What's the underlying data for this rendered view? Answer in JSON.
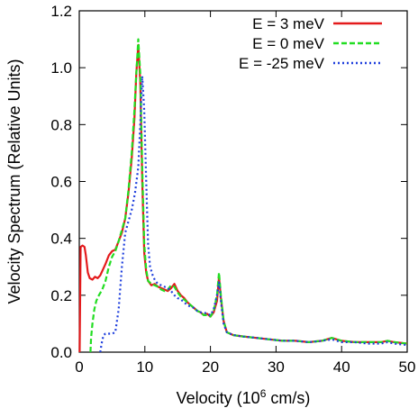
{
  "chart_data": {
    "type": "line",
    "title": "",
    "xlabel_prefix": "Velocity (10",
    "xlabel_sup": "6",
    "xlabel_suffix": " cm/s)",
    "ylabel": "Velocity Spectrum (Relative Units)",
    "xlim": [
      0,
      50
    ],
    "ylim": [
      0,
      1.2
    ],
    "xticks": [
      "0",
      "10",
      "20",
      "30",
      "40",
      "50"
    ],
    "yticks": [
      "0.0",
      "0.2",
      "0.4",
      "0.6",
      "0.8",
      "1.0",
      "1.2"
    ],
    "legend_position": "top-right",
    "grid": false,
    "series": [
      {
        "name": "E = 3 meV",
        "color": "#e41a1c",
        "dash": "solid",
        "points": [
          [
            0.05,
            0.0
          ],
          [
            0.2,
            0.37
          ],
          [
            0.5,
            0.375
          ],
          [
            0.8,
            0.37
          ],
          [
            1.0,
            0.34
          ],
          [
            1.3,
            0.28
          ],
          [
            1.6,
            0.26
          ],
          [
            2.0,
            0.255
          ],
          [
            2.4,
            0.265
          ],
          [
            2.8,
            0.26
          ],
          [
            3.2,
            0.27
          ],
          [
            3.6,
            0.29
          ],
          [
            4.0,
            0.31
          ],
          [
            4.5,
            0.34
          ],
          [
            5.0,
            0.355
          ],
          [
            5.5,
            0.36
          ],
          [
            6.0,
            0.39
          ],
          [
            6.5,
            0.42
          ],
          [
            7.0,
            0.47
          ],
          [
            7.5,
            0.56
          ],
          [
            8.0,
            0.68
          ],
          [
            8.4,
            0.82
          ],
          [
            8.7,
            0.98
          ],
          [
            9.0,
            1.08
          ],
          [
            9.3,
            0.95
          ],
          [
            9.6,
            0.6
          ],
          [
            9.9,
            0.35
          ],
          [
            10.2,
            0.28
          ],
          [
            10.5,
            0.25
          ],
          [
            11.0,
            0.235
          ],
          [
            11.5,
            0.24
          ],
          [
            12.0,
            0.23
          ],
          [
            12.5,
            0.225
          ],
          [
            13.0,
            0.22
          ],
          [
            13.5,
            0.215
          ],
          [
            14.0,
            0.225
          ],
          [
            14.5,
            0.24
          ],
          [
            15.0,
            0.215
          ],
          [
            15.5,
            0.2
          ],
          [
            16.0,
            0.19
          ],
          [
            16.5,
            0.175
          ],
          [
            17.0,
            0.165
          ],
          [
            17.5,
            0.155
          ],
          [
            18.0,
            0.145
          ],
          [
            18.5,
            0.14
          ],
          [
            19.0,
            0.13
          ],
          [
            19.5,
            0.135
          ],
          [
            20.0,
            0.125
          ],
          [
            20.5,
            0.14
          ],
          [
            21.0,
            0.18
          ],
          [
            21.3,
            0.265
          ],
          [
            21.6,
            0.19
          ],
          [
            22.0,
            0.11
          ],
          [
            22.5,
            0.07
          ],
          [
            23.5,
            0.06
          ],
          [
            25,
            0.055
          ],
          [
            27,
            0.05
          ],
          [
            29,
            0.045
          ],
          [
            31,
            0.04
          ],
          [
            33,
            0.04
          ],
          [
            35,
            0.035
          ],
          [
            37,
            0.04
          ],
          [
            38.5,
            0.05
          ],
          [
            40,
            0.04
          ],
          [
            42,
            0.035
          ],
          [
            44,
            0.035
          ],
          [
            46,
            0.035
          ],
          [
            47,
            0.04
          ],
          [
            48,
            0.035
          ],
          [
            50,
            0.03
          ]
        ]
      },
      {
        "name": "E = 0 meV",
        "color": "#22dd22",
        "dash": "6,3",
        "points": [
          [
            1.7,
            0.0
          ],
          [
            1.8,
            0.05
          ],
          [
            2.0,
            0.1
          ],
          [
            2.3,
            0.15
          ],
          [
            2.6,
            0.18
          ],
          [
            3.0,
            0.2
          ],
          [
            3.5,
            0.22
          ],
          [
            4.0,
            0.25
          ],
          [
            4.5,
            0.3
          ],
          [
            5.0,
            0.335
          ],
          [
            5.5,
            0.355
          ],
          [
            6.0,
            0.39
          ],
          [
            6.5,
            0.43
          ],
          [
            7.0,
            0.47
          ],
          [
            7.5,
            0.57
          ],
          [
            8.0,
            0.7
          ],
          [
            8.4,
            0.85
          ],
          [
            8.7,
            0.98
          ],
          [
            9.0,
            1.1
          ],
          [
            9.3,
            0.98
          ],
          [
            9.6,
            0.65
          ],
          [
            9.9,
            0.38
          ],
          [
            10.2,
            0.29
          ],
          [
            10.5,
            0.25
          ],
          [
            11.0,
            0.24
          ],
          [
            11.5,
            0.235
          ],
          [
            12.0,
            0.23
          ],
          [
            12.5,
            0.22
          ],
          [
            13.0,
            0.215
          ],
          [
            13.5,
            0.22
          ],
          [
            14.0,
            0.235
          ],
          [
            14.5,
            0.23
          ],
          [
            15.0,
            0.21
          ],
          [
            15.5,
            0.195
          ],
          [
            16.0,
            0.185
          ],
          [
            16.5,
            0.175
          ],
          [
            17.0,
            0.165
          ],
          [
            17.5,
            0.155
          ],
          [
            18.0,
            0.145
          ],
          [
            18.5,
            0.14
          ],
          [
            19.0,
            0.13
          ],
          [
            19.5,
            0.13
          ],
          [
            20.0,
            0.125
          ],
          [
            20.5,
            0.145
          ],
          [
            21.0,
            0.2
          ],
          [
            21.3,
            0.28
          ],
          [
            21.6,
            0.2
          ],
          [
            22.0,
            0.11
          ],
          [
            22.5,
            0.07
          ],
          [
            23.5,
            0.06
          ],
          [
            25,
            0.055
          ],
          [
            27,
            0.05
          ],
          [
            29,
            0.045
          ],
          [
            31,
            0.04
          ],
          [
            33,
            0.04
          ],
          [
            35,
            0.035
          ],
          [
            37,
            0.04
          ],
          [
            38.5,
            0.05
          ],
          [
            40,
            0.04
          ],
          [
            42,
            0.035
          ],
          [
            44,
            0.035
          ],
          [
            46,
            0.035
          ],
          [
            47,
            0.04
          ],
          [
            48,
            0.035
          ],
          [
            50,
            0.03
          ]
        ]
      },
      {
        "name": "E = -25 meV",
        "color": "#1f3fdd",
        "dash": "2,3",
        "points": [
          [
            3.2,
            0.0
          ],
          [
            3.4,
            0.03
          ],
          [
            3.7,
            0.06
          ],
          [
            4.0,
            0.065
          ],
          [
            4.5,
            0.065
          ],
          [
            5.0,
            0.065
          ],
          [
            5.5,
            0.07
          ],
          [
            6.0,
            0.15
          ],
          [
            6.5,
            0.3
          ],
          [
            7.0,
            0.42
          ],
          [
            7.5,
            0.46
          ],
          [
            8.0,
            0.5
          ],
          [
            8.5,
            0.56
          ],
          [
            9.0,
            0.65
          ],
          [
            9.3,
            0.8
          ],
          [
            9.6,
            0.97
          ],
          [
            9.9,
            0.85
          ],
          [
            10.2,
            0.6
          ],
          [
            10.5,
            0.38
          ],
          [
            10.8,
            0.3
          ],
          [
            11.2,
            0.27
          ],
          [
            11.6,
            0.25
          ],
          [
            12.0,
            0.24
          ],
          [
            12.5,
            0.235
          ],
          [
            13.0,
            0.23
          ],
          [
            13.5,
            0.225
          ],
          [
            14.0,
            0.215
          ],
          [
            14.5,
            0.2
          ],
          [
            15.0,
            0.19
          ],
          [
            15.5,
            0.185
          ],
          [
            16.0,
            0.175
          ],
          [
            16.5,
            0.165
          ],
          [
            17.0,
            0.16
          ],
          [
            17.5,
            0.155
          ],
          [
            18.0,
            0.145
          ],
          [
            18.5,
            0.14
          ],
          [
            19.0,
            0.14
          ],
          [
            19.5,
            0.135
          ],
          [
            20.0,
            0.13
          ],
          [
            20.5,
            0.15
          ],
          [
            21.0,
            0.2
          ],
          [
            21.3,
            0.245
          ],
          [
            21.6,
            0.18
          ],
          [
            22.0,
            0.1
          ],
          [
            22.5,
            0.07
          ],
          [
            23.5,
            0.06
          ],
          [
            25,
            0.055
          ],
          [
            27,
            0.05
          ],
          [
            29,
            0.045
          ],
          [
            31,
            0.04
          ],
          [
            33,
            0.04
          ],
          [
            35,
            0.035
          ],
          [
            37,
            0.04
          ],
          [
            38.5,
            0.045
          ],
          [
            40,
            0.035
          ],
          [
            42,
            0.035
          ],
          [
            44,
            0.03
          ],
          [
            46,
            0.03
          ],
          [
            47,
            0.035
          ],
          [
            48,
            0.03
          ],
          [
            50,
            0.025
          ]
        ]
      }
    ]
  }
}
